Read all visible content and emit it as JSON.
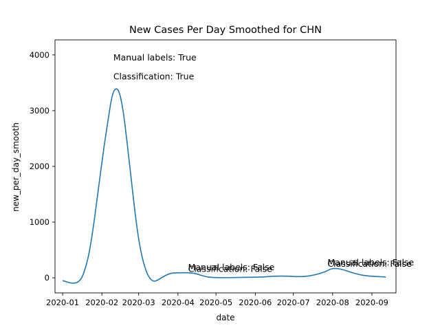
{
  "chart_data": {
    "type": "line",
    "title": "New Cases Per Day Smoothed for CHN",
    "xlabel": "date",
    "ylabel": "new_per_day_smooth",
    "x_ticks": [
      "2020-01",
      "2020-02",
      "2020-03",
      "2020-04",
      "2020-05",
      "2020-06",
      "2020-07",
      "2020-08",
      "2020-09"
    ],
    "y_ticks": [
      0,
      1000,
      2000,
      3000,
      4000
    ],
    "xlim": [
      "2019-12-26",
      "2020-09-20"
    ],
    "ylim": [
      -270,
      4270
    ],
    "grid": false,
    "colors": {
      "line": "#1f77b4"
    },
    "series": [
      {
        "x": [
          "2020-01-01",
          "2020-01-04",
          "2020-01-07",
          "2020-01-10",
          "2020-01-13",
          "2020-01-16",
          "2020-01-19",
          "2020-01-22",
          "2020-01-25",
          "2020-01-28",
          "2020-01-31",
          "2020-02-03",
          "2020-02-06",
          "2020-02-09",
          "2020-02-12",
          "2020-02-15",
          "2020-02-18",
          "2020-02-21",
          "2020-02-24",
          "2020-02-27",
          "2020-03-01",
          "2020-03-04",
          "2020-03-07",
          "2020-03-10",
          "2020-03-13",
          "2020-03-16",
          "2020-03-19",
          "2020-03-22",
          "2020-03-25",
          "2020-03-28",
          "2020-03-31",
          "2020-04-05",
          "2020-04-10",
          "2020-04-15",
          "2020-04-20",
          "2020-04-25",
          "2020-05-01",
          "2020-05-08",
          "2020-05-15",
          "2020-05-22",
          "2020-06-01",
          "2020-06-08",
          "2020-06-15",
          "2020-06-22",
          "2020-06-28",
          "2020-07-05",
          "2020-07-12",
          "2020-07-19",
          "2020-07-26",
          "2020-07-31",
          "2020-08-05",
          "2020-08-10",
          "2020-08-17",
          "2020-08-24",
          "2020-09-01",
          "2020-09-08",
          "2020-09-12"
        ],
        "y": [
          -50,
          -70,
          -90,
          -95,
          -75,
          0,
          180,
          460,
          880,
          1380,
          1900,
          2400,
          2850,
          3250,
          3390,
          3300,
          2950,
          2400,
          1800,
          1200,
          700,
          350,
          120,
          -10,
          -60,
          -40,
          0,
          40,
          70,
          85,
          90,
          92,
          90,
          75,
          40,
          15,
          5,
          3,
          5,
          8,
          12,
          18,
          28,
          32,
          28,
          22,
          30,
          60,
          110,
          160,
          165,
          140,
          90,
          50,
          28,
          20,
          15
        ]
      }
    ],
    "annotations": [
      {
        "text": "Manual labels: True",
        "x": "2020-02-10",
        "y": 3900
      },
      {
        "text": "Classification: True",
        "x": "2020-02-10",
        "y": 3560
      },
      {
        "text": "Manual labels: False",
        "x": "2020-04-09",
        "y": 140
      },
      {
        "text": "Classification: False",
        "x": "2020-04-09",
        "y": 105
      },
      {
        "text": "Manual labels: False",
        "x": "2020-07-28",
        "y": 225
      },
      {
        "text": "Classification: False",
        "x": "2020-07-28",
        "y": 200
      }
    ]
  }
}
